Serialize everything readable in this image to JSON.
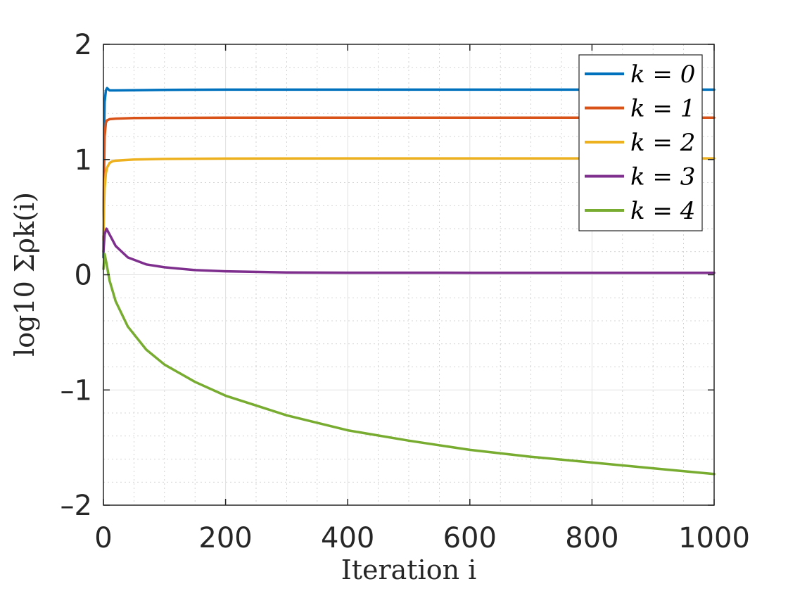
{
  "chart_data": {
    "type": "line",
    "title": "",
    "xlabel": "Iteration i",
    "ylabel": "log10 Σρk(i)",
    "xlim": [
      0,
      1000
    ],
    "ylim": [
      -2,
      2
    ],
    "xticks": [
      "0",
      "200",
      "400",
      "600",
      "800",
      "1000"
    ],
    "yticks": [
      "2",
      "1",
      "0",
      "–1",
      "–2"
    ],
    "grid": true,
    "minor_grid": true,
    "legend_position": "top-right",
    "series": [
      {
        "name": "k = 0",
        "color": "#0072BD",
        "x": [
          0,
          1,
          2,
          4,
          6,
          10,
          20,
          50,
          100,
          200,
          400,
          600,
          800,
          1000
        ],
        "y": [
          0.15,
          1.2,
          1.5,
          1.6,
          1.62,
          1.6,
          1.6,
          1.602,
          1.605,
          1.607,
          1.607,
          1.607,
          1.607,
          1.607
        ]
      },
      {
        "name": "k = 1",
        "color": "#D95319",
        "x": [
          0,
          1,
          2,
          4,
          6,
          10,
          20,
          50,
          100,
          200,
          400,
          600,
          800,
          1000
        ],
        "y": [
          0.3,
          0.9,
          1.2,
          1.32,
          1.34,
          1.35,
          1.355,
          1.36,
          1.362,
          1.363,
          1.363,
          1.363,
          1.363,
          1.363
        ]
      },
      {
        "name": "k = 2",
        "color": "#EDB120",
        "x": [
          0,
          1,
          2,
          4,
          6,
          10,
          15,
          20,
          50,
          100,
          200,
          400,
          600,
          800,
          1000
        ],
        "y": [
          0.35,
          0.6,
          0.75,
          0.88,
          0.93,
          0.97,
          0.985,
          0.99,
          1.0,
          1.005,
          1.008,
          1.01,
          1.01,
          1.01,
          1.01
        ]
      },
      {
        "name": "k = 3",
        "color": "#7E2F8E",
        "x": [
          0,
          2,
          5,
          10,
          20,
          40,
          70,
          100,
          150,
          200,
          300,
          400,
          600,
          800,
          1000
        ],
        "y": [
          0.2,
          0.35,
          0.4,
          0.35,
          0.25,
          0.15,
          0.09,
          0.065,
          0.04,
          0.03,
          0.02,
          0.018,
          0.017,
          0.017,
          0.017
        ]
      },
      {
        "name": "k = 4",
        "color": "#77AC30",
        "x": [
          0,
          2,
          5,
          10,
          20,
          40,
          70,
          100,
          150,
          200,
          300,
          400,
          500,
          600,
          700,
          800,
          900,
          1000
        ],
        "y": [
          0.05,
          0.18,
          0.1,
          -0.05,
          -0.23,
          -0.45,
          -0.65,
          -0.78,
          -0.93,
          -1.05,
          -1.22,
          -1.35,
          -1.44,
          -1.52,
          -1.58,
          -1.63,
          -1.68,
          -1.73
        ]
      }
    ]
  }
}
